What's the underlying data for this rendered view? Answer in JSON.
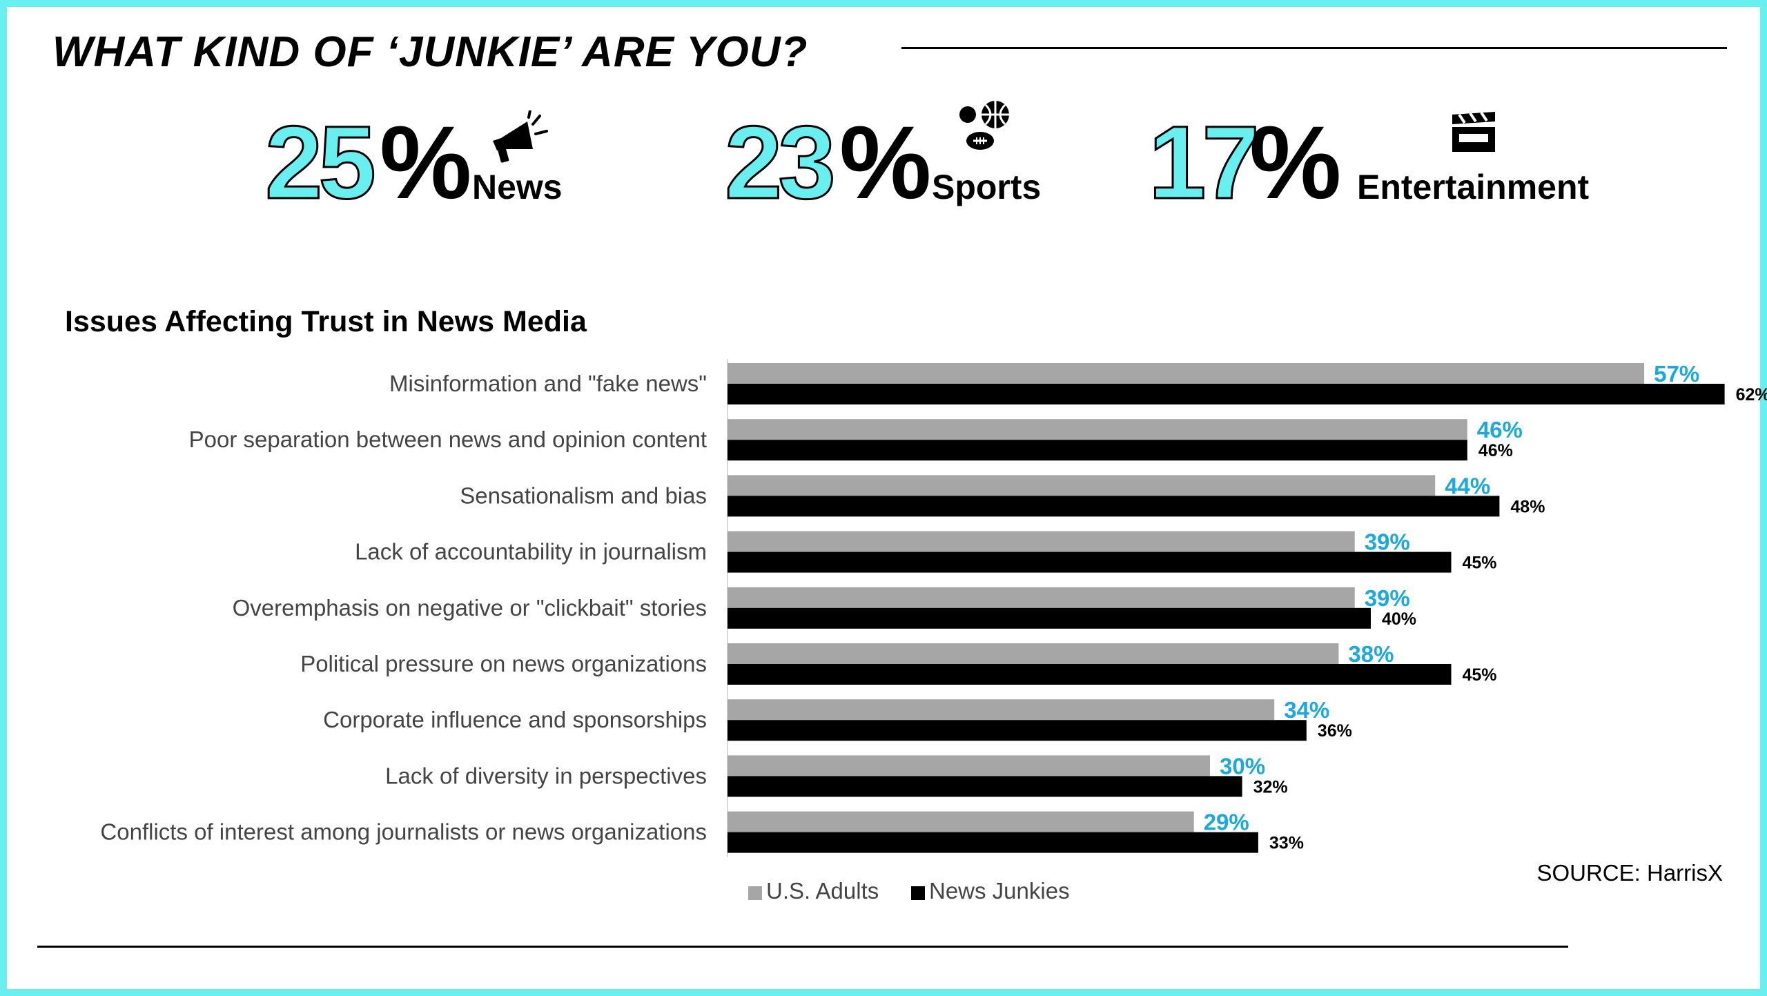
{
  "header": {
    "title": "WHAT KIND OF ‘JUNKIE’ ARE YOU?"
  },
  "stats": [
    {
      "value": "25",
      "unit": "%",
      "label": "News",
      "icon": "megaphone-icon"
    },
    {
      "value": "23",
      "unit": "%",
      "label": "Sports",
      "icon": "sports-balls-icon"
    },
    {
      "value": "17",
      "unit": "%",
      "label": "Entertainment",
      "icon": "clapperboard-icon"
    }
  ],
  "colors": {
    "accent": "#67f0ef",
    "us_adults": "#a6a6a6",
    "news_junkies": "#000000",
    "us_adults_label": "#1aa8e0"
  },
  "chart_data": {
    "type": "bar",
    "orientation": "horizontal",
    "title": "Issues Affecting Trust in News Media",
    "categories": [
      "Misinformation and \"fake news\"",
      "Poor separation between news and opinion content",
      "Sensationalism and bias",
      "Lack of accountability in journalism",
      "Overemphasis on negative or \"clickbait\" stories",
      "Political pressure on news organizations",
      "Corporate influence and sponsorships",
      "Lack of diversity in perspectives",
      "Conflicts of interest among journalists or news organizations"
    ],
    "series": [
      {
        "name": "U.S. Adults",
        "values": [
          57,
          46,
          44,
          39,
          39,
          38,
          34,
          30,
          29
        ]
      },
      {
        "name": "News Junkies",
        "values": [
          62,
          46,
          48,
          45,
          40,
          45,
          36,
          32,
          33
        ]
      }
    ],
    "value_format": "%",
    "xlim": [
      0,
      70
    ],
    "grid": false,
    "legend": "bottom"
  },
  "footer": {
    "source": "SOURCE: HarrisX"
  }
}
